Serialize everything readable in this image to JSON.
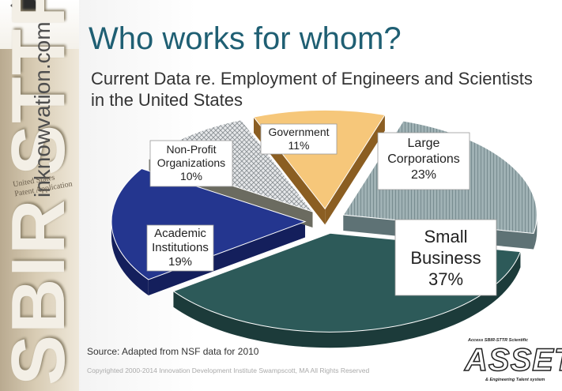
{
  "slide": {
    "title": "Who works for whom?",
    "subtitle": "Current Data re. Employment of Engineers and Scientists in the United States",
    "source": "Source:  Adapted from NSF data for 2010",
    "copyright": "Copyrighted 2000-2014 Innovation Development Institute Swampscott, MA   All Rights Reserved"
  },
  "brand": {
    "vertical_domain": "inknowvation.com",
    "vertical_sbir": "SBIR STTR",
    "stamp_line1": "United States",
    "stamp_line2": "Patent Application"
  },
  "logo": {
    "top_line": "Access SBIR-STTR Scientific",
    "main": "ASSETs",
    "bottom_line": "& Engineering Talent system"
  },
  "colors": {
    "title": "#1f5f73",
    "large_corporations": "#8a9fa3",
    "small_business": "#2d5a59",
    "academic_institutions": "#24368f",
    "non_profit": "#cfd3d6",
    "government": "#f6c77a"
  },
  "chart_data": {
    "type": "pie",
    "style": "3d exploded",
    "slices": [
      {
        "key": "large",
        "label_lines": [
          "Large",
          "Corporations"
        ],
        "value": 23,
        "value_label": "23%",
        "color": "#8a9fa3"
      },
      {
        "key": "small",
        "label_lines": [
          "Small",
          "Business"
        ],
        "value": 37,
        "value_label": "37%",
        "color": "#2d5a59"
      },
      {
        "key": "academic",
        "label_lines": [
          "Academic",
          "Institutions"
        ],
        "value": 19,
        "value_label": "19%",
        "color": "#24368f"
      },
      {
        "key": "nonprofit",
        "label_lines": [
          "Non-Profit",
          "Organizations"
        ],
        "value": 10,
        "value_label": "10%",
        "color": "#cfd3d6"
      },
      {
        "key": "government",
        "label_lines": [
          "Government"
        ],
        "value": 11,
        "value_label": "11%",
        "color": "#f6c77a"
      }
    ]
  }
}
